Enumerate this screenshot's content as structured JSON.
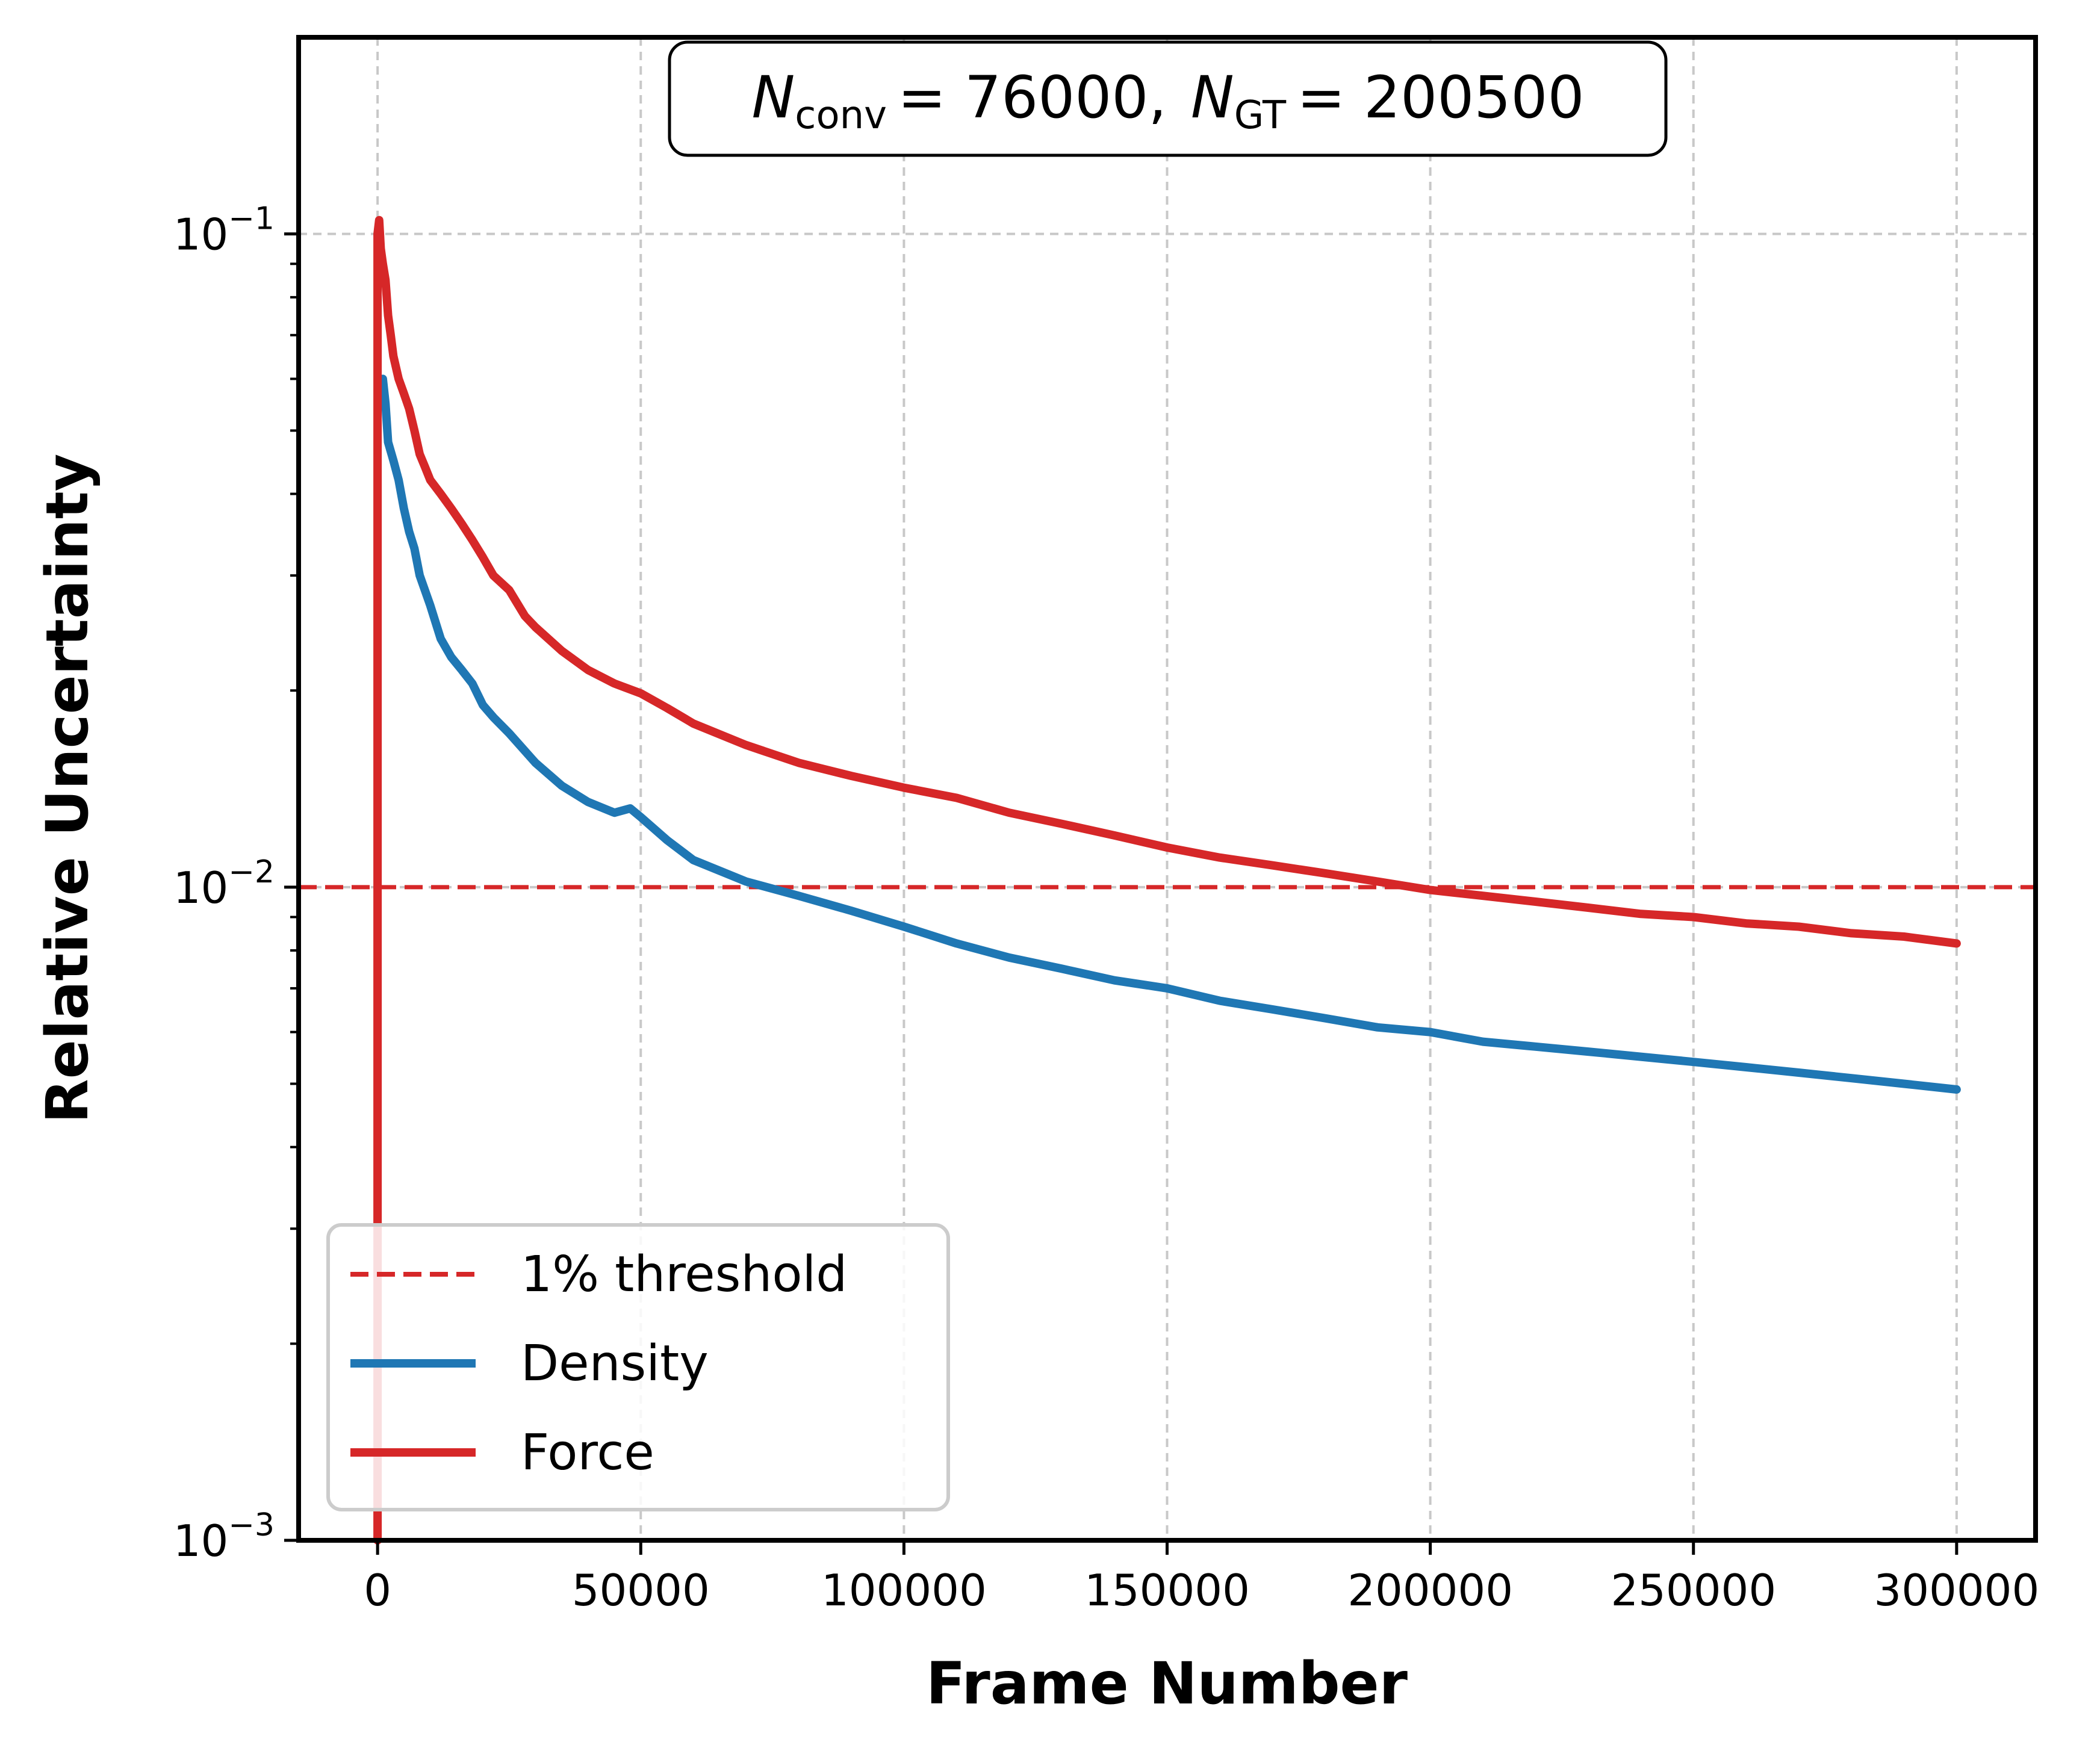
{
  "chart_data": {
    "type": "line",
    "title": "",
    "xlabel": "Frame Number",
    "ylabel": "Relative Uncertainty",
    "xlim": [
      -15000,
      315000
    ],
    "ylim": [
      0.001,
      0.2
    ],
    "yscale": "log",
    "grid": true,
    "legend_position": "lower-left",
    "x_ticks": [
      0,
      50000,
      100000,
      150000,
      200000,
      250000,
      300000
    ],
    "x_tick_labels": [
      "0",
      "50000",
      "100000",
      "150000",
      "200000",
      "250000",
      "300000"
    ],
    "y_ticks": [
      0.001,
      0.01,
      0.1
    ],
    "y_tick_labels": [
      {
        "base": "10",
        "exp": "−3"
      },
      {
        "base": "10",
        "exp": "−2"
      },
      {
        "base": "10",
        "exp": "−1"
      }
    ],
    "annotation": {
      "n_conv_symbol": "N",
      "n_conv_sub": "conv",
      "n_conv_value": "= 76000,",
      "n_gt_symbol": "N",
      "n_gt_sub": "GT",
      "n_gt_value": "= 200500"
    },
    "threshold": {
      "name": "1% threshold",
      "y": 0.01,
      "color": "#d62728",
      "style": "dashed"
    },
    "series": [
      {
        "name": "Density",
        "color": "#1f77b4",
        "x": [
          1000,
          1500,
          2000,
          3000,
          4000,
          5000,
          6000,
          7000,
          8000,
          10000,
          12000,
          14000,
          16000,
          18000,
          20000,
          22000,
          25000,
          30000,
          35000,
          40000,
          45000,
          48000,
          50000,
          55000,
          60000,
          70000,
          80000,
          90000,
          100000,
          110000,
          120000,
          130000,
          140000,
          150000,
          160000,
          170000,
          180000,
          190000,
          200000,
          210000,
          220000,
          230000,
          240000,
          250000,
          260000,
          270000,
          280000,
          290000,
          300000
        ],
        "y": [
          0.06,
          0.055,
          0.048,
          0.045,
          0.042,
          0.038,
          0.035,
          0.033,
          0.03,
          0.027,
          0.024,
          0.0225,
          0.0215,
          0.0205,
          0.019,
          0.0182,
          0.0172,
          0.0155,
          0.0143,
          0.0135,
          0.013,
          0.0132,
          0.0128,
          0.0118,
          0.011,
          0.0102,
          0.0097,
          0.0092,
          0.0087,
          0.0082,
          0.0078,
          0.0075,
          0.0072,
          0.007,
          0.0067,
          0.0065,
          0.0063,
          0.0061,
          0.006,
          0.0058,
          0.0057,
          0.0056,
          0.0055,
          0.0054,
          0.0053,
          0.0052,
          0.0051,
          0.005,
          0.0049
        ]
      },
      {
        "name": "Force",
        "color": "#d62728",
        "x": [
          0,
          0,
          300,
          600,
          1000,
          1500,
          2000,
          2500,
          3000,
          4000,
          5000,
          6000,
          7000,
          8000,
          9000,
          10000,
          12000,
          14000,
          16000,
          18000,
          20000,
          22000,
          25000,
          28000,
          30000,
          35000,
          40000,
          45000,
          50000,
          55000,
          60000,
          70000,
          80000,
          90000,
          100000,
          110000,
          120000,
          130000,
          140000,
          150000,
          160000,
          170000,
          180000,
          190000,
          200000,
          210000,
          220000,
          230000,
          240000,
          250000,
          260000,
          270000,
          280000,
          290000,
          300000
        ],
        "y": [
          0.001,
          0.1,
          0.105,
          0.095,
          0.09,
          0.085,
          0.075,
          0.07,
          0.065,
          0.06,
          0.057,
          0.054,
          0.05,
          0.046,
          0.044,
          0.042,
          0.04,
          0.038,
          0.036,
          0.034,
          0.032,
          0.03,
          0.0285,
          0.026,
          0.025,
          0.023,
          0.0215,
          0.0205,
          0.0198,
          0.0188,
          0.0178,
          0.0165,
          0.0155,
          0.0148,
          0.0142,
          0.0137,
          0.013,
          0.0125,
          0.012,
          0.0115,
          0.0111,
          0.0108,
          0.0105,
          0.0102,
          0.0099,
          0.0097,
          0.0095,
          0.0093,
          0.0091,
          0.009,
          0.0088,
          0.0087,
          0.0085,
          0.0084,
          0.0082
        ]
      }
    ]
  }
}
